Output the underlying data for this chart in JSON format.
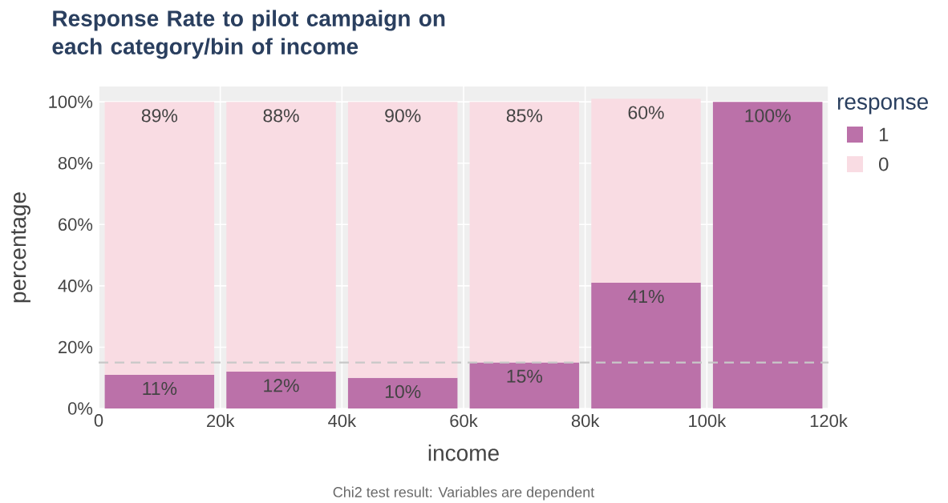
{
  "chart_data": {
    "type": "bar",
    "title": "Response Rate to pilot campaign on each category/bin of income",
    "xlabel": "income",
    "ylabel": "percentage",
    "legend_title": "response",
    "annotations": [
      "Chi2 test result: Variables are dependent"
    ],
    "x": [
      10000,
      30000,
      50000,
      70000,
      90000,
      110000
    ],
    "series": [
      {
        "name": "1",
        "color": "#bb71a9",
        "values": [
          11,
          12,
          10,
          15,
          41,
          100
        ],
        "value_labels": [
          "11%",
          "12%",
          "10%",
          "15%",
          "41%",
          "100%"
        ]
      },
      {
        "name": "0",
        "color": "#f9dce3",
        "values": [
          89,
          88,
          90,
          85,
          60,
          null
        ],
        "value_labels": [
          "89%",
          "88%",
          "90%",
          "85%",
          "60%",
          null
        ]
      }
    ],
    "stacked": true,
    "xlim": [
      0,
      120000
    ],
    "ylim": [
      0,
      105
    ],
    "xticks": [
      0,
      {
        "value": 20000,
        "label": "20k"
      },
      {
        "value": 40000,
        "label": "40k"
      },
      {
        "value": 60000,
        "label": "60k"
      },
      {
        "value": 80000,
        "label": "80k"
      },
      {
        "value": 100000,
        "label": "100k"
      },
      {
        "value": 120000,
        "label": "120k"
      }
    ],
    "yticks": [
      {
        "value": 0,
        "label": "0%"
      },
      {
        "value": 20,
        "label": "20%"
      },
      {
        "value": 40,
        "label": "40%"
      },
      {
        "value": 60,
        "label": "60%"
      },
      {
        "value": 80,
        "label": "80%"
      },
      {
        "value": 100,
        "label": "100%"
      }
    ],
    "ref_lines": [
      {
        "axis": "y",
        "value": 15,
        "color": "#c8c8c8",
        "line_style": "dashed"
      }
    ],
    "grid": true,
    "legend": "right"
  }
}
